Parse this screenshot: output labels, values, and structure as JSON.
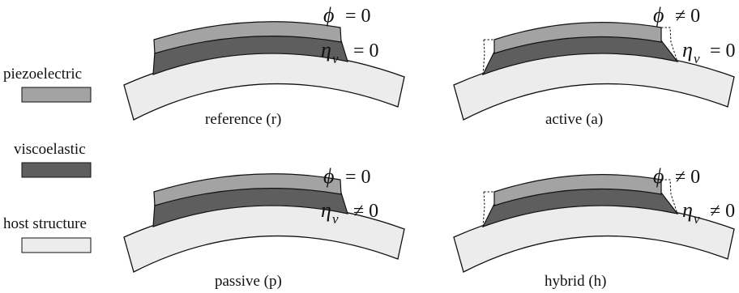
{
  "legend": [
    {
      "label": "piezoelectric",
      "color": "#a3a3a3"
    },
    {
      "label": "viscoelastic",
      "color": "#5e5e5e"
    },
    {
      "label": "host structure",
      "color": "#ececec"
    }
  ],
  "panels": [
    {
      "caption": "reference (r)",
      "phi_symbol": "ϕ",
      "phi_rel": "= 0",
      "eta_symbol": "η",
      "eta_sub": "v",
      "eta_rel": "= 0",
      "deformed": false
    },
    {
      "caption": "active (a)",
      "phi_symbol": "ϕ",
      "phi_rel": "≠ 0",
      "eta_symbol": "η",
      "eta_sub": "v",
      "eta_rel": "= 0",
      "deformed": true
    },
    {
      "caption": "passive (p)",
      "phi_symbol": "ϕ",
      "phi_rel": "= 0",
      "eta_symbol": "η",
      "eta_sub": "v",
      "eta_rel": "≠ 0",
      "deformed": false
    },
    {
      "caption": "hybrid (h)",
      "phi_symbol": "ϕ",
      "phi_rel": "≠ 0",
      "eta_symbol": "η",
      "eta_sub": "v",
      "eta_rel": "≠ 0",
      "deformed": true
    }
  ],
  "colors": {
    "piezo": "#a3a3a3",
    "visco": "#5e5e5e",
    "host": "#ececec",
    "stroke": "#111111"
  }
}
